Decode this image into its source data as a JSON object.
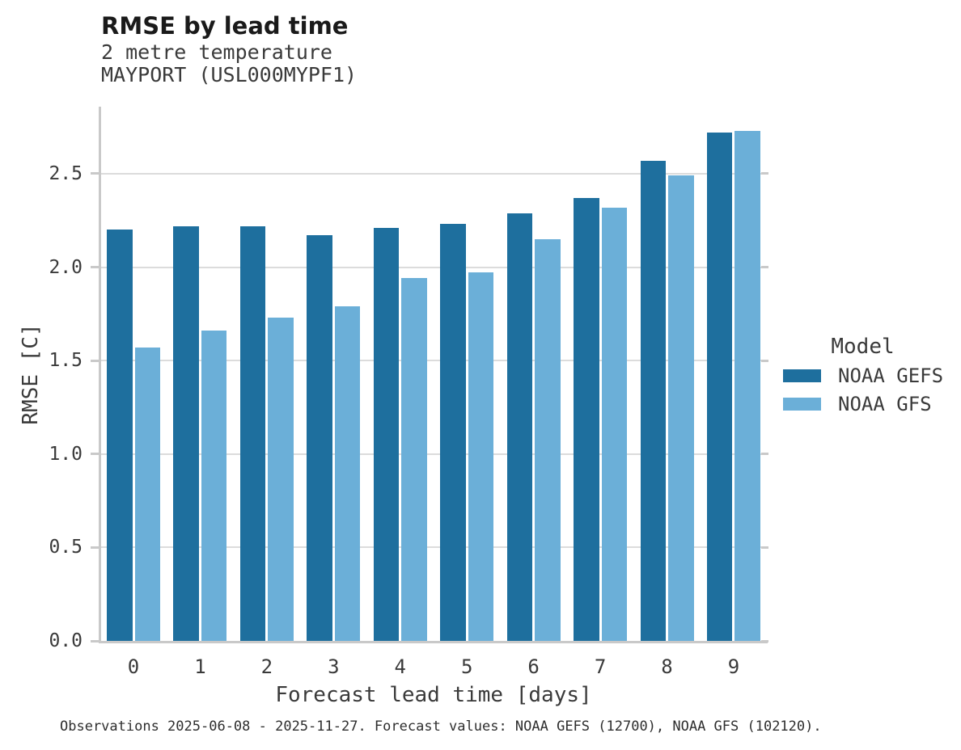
{
  "chart_data": {
    "type": "bar",
    "title": "RMSE by lead time",
    "subtitle_lines": [
      "2 metre temperature",
      "MAYPORT (USL000MYPF1)"
    ],
    "xlabel": "Forecast lead time [days]",
    "ylabel": "RMSE [C]",
    "categories": [
      "0",
      "1",
      "2",
      "3",
      "4",
      "5",
      "6",
      "7",
      "8",
      "9"
    ],
    "series": [
      {
        "name": "NOAA GEFS",
        "color": "#1e6f9e",
        "values": [
          2.2,
          2.22,
          2.22,
          2.17,
          2.21,
          2.23,
          2.29,
          2.37,
          2.57,
          2.72
        ]
      },
      {
        "name": "NOAA GFS",
        "color": "#6bafd8",
        "values": [
          1.57,
          1.66,
          1.73,
          1.79,
          1.94,
          1.97,
          2.15,
          2.32,
          2.49,
          2.73
        ]
      }
    ],
    "ylim": [
      0,
      2.85
    ],
    "ytick_labels": [
      "0.0",
      "0.5",
      "1.0",
      "1.5",
      "2.0",
      "2.5"
    ],
    "grid": true,
    "legend": {
      "title": "Model",
      "position": "right"
    },
    "caption": "Observations 2025-06-08 - 2025-11-27. Forecast values: NOAA GEFS (12700), NOAA GFS (102120)."
  }
}
